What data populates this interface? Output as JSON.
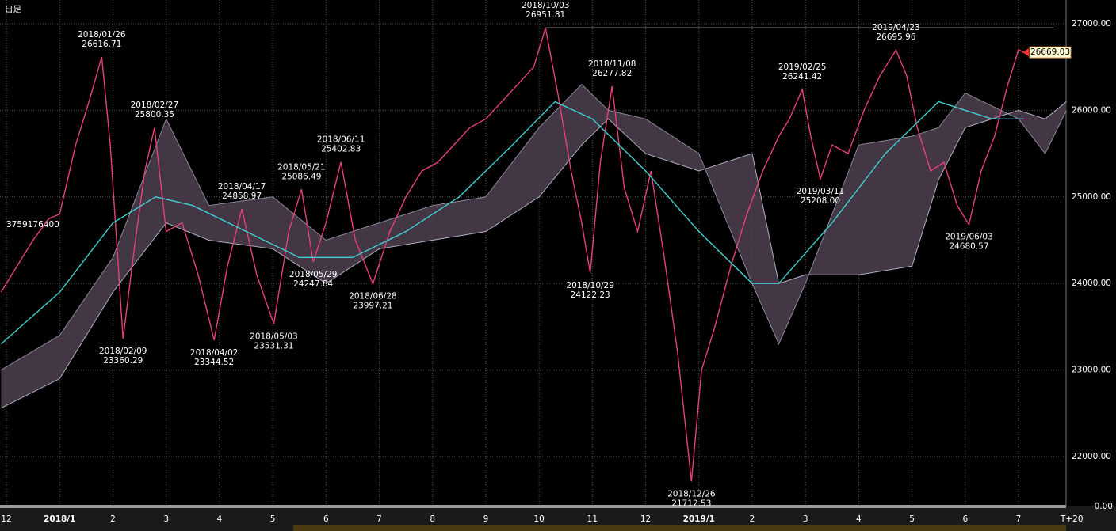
{
  "chart_data": {
    "type": "line",
    "title": "日足",
    "volume_label": "3759176400",
    "volume_axis_label": "0.00",
    "last_price_label": "26669.03",
    "xlim": [
      -0.12,
      20.83
    ],
    "ylim": [
      21424,
      27274
    ],
    "grid": true,
    "xticks": [
      {
        "value": 0,
        "label": "12"
      },
      {
        "value": 1,
        "label": "2018/1"
      },
      {
        "value": 2,
        "label": "2"
      },
      {
        "value": 3,
        "label": "3"
      },
      {
        "value": 4,
        "label": "4"
      },
      {
        "value": 5,
        "label": "5"
      },
      {
        "value": 6,
        "label": "6"
      },
      {
        "value": 7,
        "label": "7"
      },
      {
        "value": 8,
        "label": "8"
      },
      {
        "value": 9,
        "label": "9"
      },
      {
        "value": 10,
        "label": "10"
      },
      {
        "value": 11,
        "label": "11"
      },
      {
        "value": 12,
        "label": "12"
      },
      {
        "value": 13,
        "label": "2019/1"
      },
      {
        "value": 14,
        "label": "2"
      },
      {
        "value": 15,
        "label": "3"
      },
      {
        "value": 16,
        "label": "4"
      },
      {
        "value": 17,
        "label": "5"
      },
      {
        "value": 18,
        "label": "6"
      },
      {
        "value": 19,
        "label": "7"
      },
      {
        "value": 20,
        "label": "T+20"
      }
    ],
    "yticks": [
      {
        "value": 22000,
        "label": "22000.00"
      },
      {
        "value": 23000,
        "label": "23000.00"
      },
      {
        "value": 24000,
        "label": "24000.00"
      },
      {
        "value": 25000,
        "label": "25000.00"
      },
      {
        "value": 26000,
        "label": "26000.00"
      },
      {
        "value": 27000,
        "label": "27000.00"
      }
    ],
    "series": [
      {
        "color": "#e8407a",
        "x": [
          -0.1,
          0.2,
          0.5,
          0.8,
          1.0,
          1.3,
          1.55,
          1.79,
          1.95,
          2.19,
          2.4,
          2.6,
          2.78,
          3.0,
          3.3,
          3.6,
          3.9,
          4.15,
          4.42,
          4.7,
          5.02,
          5.3,
          5.54,
          5.76,
          6.0,
          6.28,
          6.55,
          6.88,
          7.2,
          7.5,
          7.8,
          8.1,
          8.4,
          8.7,
          9.0,
          9.3,
          9.6,
          9.9,
          10.12,
          10.35,
          10.6,
          10.8,
          10.96,
          11.15,
          11.37,
          11.6,
          11.85,
          12.1,
          12.35,
          12.6,
          12.86,
          13.05,
          13.3,
          13.6,
          13.9,
          14.2,
          14.5,
          14.7,
          14.94,
          15.1,
          15.28,
          15.5,
          15.8,
          16.1,
          16.4,
          16.7,
          16.9,
          17.1,
          17.35,
          17.6,
          17.85,
          18.07,
          18.3,
          18.55,
          18.8,
          19.0,
          19.1
        ],
        "values": [
          23900,
          24200,
          24500,
          24750,
          24800,
          25600,
          26100,
          26616.71,
          25600,
          23360.29,
          24400,
          25300,
          25800.35,
          24600,
          24700,
          24100,
          23344.52,
          24200,
          24858.97,
          24100,
          23531.31,
          24600,
          25086.49,
          24247.84,
          24700,
          25402.83,
          24500,
          23997.21,
          24600,
          25000,
          25300,
          25400,
          25600,
          25800,
          25900,
          26100,
          26300,
          26500,
          26951.81,
          26200,
          25300,
          24700,
          24122.23,
          25400,
          26277.82,
          25100,
          24600,
          25300,
          24300,
          23200,
          21712.53,
          23000,
          23500,
          24200,
          24800,
          25300,
          25700,
          25900,
          26241.42,
          25700,
          25208,
          25600,
          25500,
          26000,
          26400,
          26695.96,
          26400,
          25800,
          25300,
          25400,
          24900,
          24680.57,
          25300,
          25700,
          26300,
          26700,
          26669.03
        ]
      },
      {
        "color": "#40d0d0",
        "x": [
          -0.1,
          1,
          2,
          2.8,
          3.5,
          4.5,
          5.5,
          6.5,
          7.5,
          8.5,
          9.5,
          10.3,
          11,
          12,
          13,
          14,
          14.5,
          15.5,
          16.5,
          17.5,
          18.5,
          19.1
        ],
        "values": [
          23300,
          23900,
          24700,
          25000,
          24900,
          24600,
          24300,
          24300,
          24600,
          25000,
          25600,
          26100,
          25900,
          25300,
          24600,
          24000,
          24000,
          24700,
          25500,
          26100,
          25900,
          25900
        ]
      }
    ],
    "cloud": {
      "color": "#4a3c4c",
      "x": [
        -0.1,
        1.0,
        2.0,
        3.0,
        3.8,
        5.0,
        6.0,
        7.0,
        8.0,
        9.0,
        10.0,
        10.8,
        11.3,
        12.0,
        13.0,
        14.0,
        14.5,
        15.0,
        16.0,
        17.0,
        17.5,
        18.0,
        19.0,
        19.5,
        19.9
      ],
      "span_a": [
        23000,
        23400,
        24300,
        25900,
        24900,
        25000,
        24500,
        24700,
        24900,
        25000,
        25800,
        26300,
        26000,
        25900,
        25500,
        24000,
        23300,
        24000,
        25600,
        25700,
        25800,
        26200,
        25900,
        25500,
        26000
      ],
      "span_b": [
        22560,
        22900,
        23900,
        24700,
        24500,
        24400,
        24000,
        24400,
        24500,
        24600,
        25000,
        25600,
        25900,
        25500,
        25300,
        25500,
        24000,
        24100,
        24100,
        24200,
        25200,
        25800,
        26000,
        25900,
        26100
      ]
    },
    "annotations": [
      {
        "date": "2018/01/26",
        "x": 1.79,
        "value": 26616.71
      },
      {
        "date": "2018/02/09",
        "x": 2.19,
        "value": 23360.29
      },
      {
        "date": "2018/02/27",
        "x": 2.78,
        "value": 25800.35
      },
      {
        "date": "2018/04/02",
        "x": 3.9,
        "value": 23344.52
      },
      {
        "date": "2018/04/17",
        "x": 4.42,
        "value": 24858.97
      },
      {
        "date": "2018/05/03",
        "x": 5.02,
        "value": 23531.31
      },
      {
        "date": "2018/05/21",
        "x": 5.54,
        "value": 25086.49
      },
      {
        "date": "2018/05/29",
        "x": 5.76,
        "value": 24247.84
      },
      {
        "date": "2018/06/11",
        "x": 6.28,
        "value": 25402.83
      },
      {
        "date": "2018/06/28",
        "x": 6.88,
        "value": 23997.21
      },
      {
        "date": "2018/10/03",
        "x": 10.12,
        "value": 26951.81
      },
      {
        "date": "2018/10/29",
        "x": 10.96,
        "value": 24122.23
      },
      {
        "date": "2018/11/08",
        "x": 11.37,
        "value": 26277.82
      },
      {
        "date": "2018/12/26",
        "x": 12.86,
        "value": 21712.53
      },
      {
        "date": "2019/02/25",
        "x": 14.94,
        "value": 26241.42
      },
      {
        "date": "2019/03/11",
        "x": 15.28,
        "value": 25208,
        "value_label": "25208.00"
      },
      {
        "date": "2019/04/23",
        "x": 16.7,
        "value": 26695.96
      },
      {
        "date": "2019/06/03",
        "x": 18.07,
        "value": 24680.57
      }
    ]
  }
}
